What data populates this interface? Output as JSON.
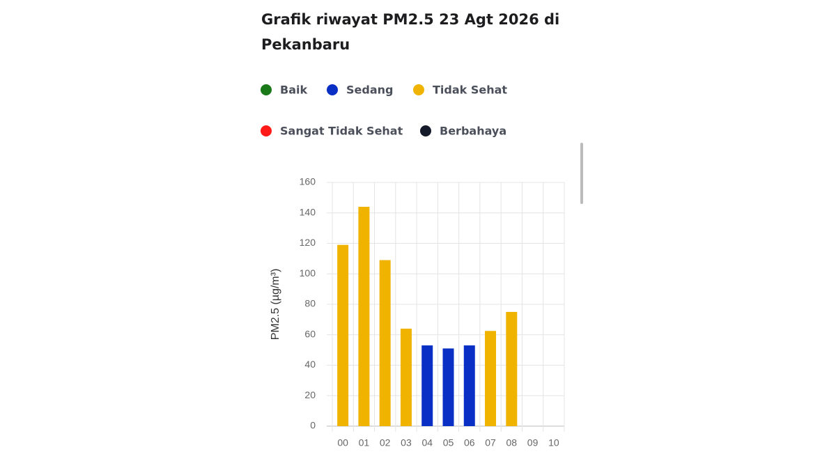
{
  "chart_data": {
    "type": "bar",
    "title": "Grafik riwayat PM2.5 23 Agt 2026 di Pekanbaru",
    "legend": [
      {
        "name": "Baik",
        "color": "#1a7a1a"
      },
      {
        "name": "Sedang",
        "color": "#0a2fc4"
      },
      {
        "name": "Tidak Sehat",
        "color": "#f0b400"
      },
      {
        "name": "Sangat Tidak Sehat",
        "color": "#ff1a1a"
      },
      {
        "name": "Berbahaya",
        "color": "#141a2a"
      }
    ],
    "y_label": "PM2.5 (µg/m³)",
    "categories": [
      "00",
      "01",
      "02",
      "03",
      "04",
      "05",
      "06",
      "07",
      "08",
      "09",
      "10"
    ],
    "values": [
      119,
      144,
      109,
      64,
      53,
      51,
      53,
      62.5,
      75,
      null,
      null
    ],
    "colors": [
      "#f0b400",
      "#f0b400",
      "#f0b400",
      "#f0b400",
      "#0a2fc4",
      "#0a2fc4",
      "#0a2fc4",
      "#f0b400",
      "#f0b400",
      null,
      null
    ],
    "ylim": [
      0,
      160
    ],
    "yticks": [
      0,
      20,
      40,
      60,
      80,
      100,
      120,
      140,
      160
    ],
    "grid": true
  }
}
